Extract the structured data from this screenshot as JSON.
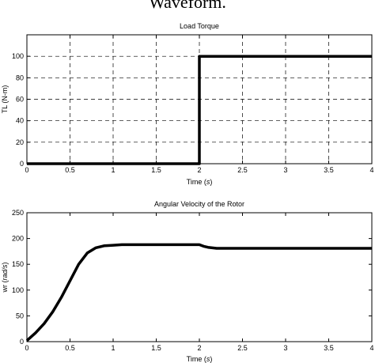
{
  "figure": {
    "partial_title": "Waveform."
  },
  "chart_data": [
    {
      "type": "line",
      "title": "Load Torque",
      "xlabel_main": "Time (",
      "xlabel_unit": "s",
      "xlabel_close": ")",
      "ylabel": "TL (N-m)",
      "xlim": [
        0,
        4
      ],
      "ylim": [
        0,
        120
      ],
      "xticks": [
        0,
        0.5,
        1,
        1.5,
        2,
        2.5,
        3,
        3.5,
        4
      ],
      "xtick_labels": [
        "0",
        "0.5",
        "1",
        "1.5",
        "2",
        "2.5",
        "3",
        "3.5",
        "4"
      ],
      "yticks": [
        0,
        20,
        40,
        60,
        80,
        100
      ],
      "ytick_labels": [
        "0",
        "20",
        "40",
        "60",
        "80",
        "100"
      ],
      "grid": true,
      "series": [
        {
          "x": [
            0,
            2,
            2,
            4
          ],
          "y": [
            0,
            0,
            100,
            100
          ],
          "color": "#000000"
        }
      ]
    },
    {
      "type": "line",
      "title": "Angular Velocity of the Rotor",
      "xlabel_main": "Time (",
      "xlabel_unit": "s",
      "xlabel_close": ")",
      "ylabel_main": "wr (",
      "ylabel_unit": "rad/s",
      "ylabel_close": ")",
      "xlim": [
        0,
        4
      ],
      "ylim": [
        0,
        250
      ],
      "xticks": [
        0,
        0.5,
        1,
        1.5,
        2,
        2.5,
        3,
        3.5,
        4
      ],
      "xtick_labels": [
        "0",
        "0.5",
        "1",
        "1.5",
        "2",
        "2.5",
        "3",
        "3.5",
        "4"
      ],
      "yticks": [
        0,
        50,
        100,
        150,
        200,
        250
      ],
      "ytick_labels": [
        "0",
        "50",
        "100",
        "150",
        "200",
        "250"
      ],
      "grid": false,
      "series": [
        {
          "x": [
            0,
            0.1,
            0.2,
            0.3,
            0.4,
            0.5,
            0.6,
            0.7,
            0.8,
            0.9,
            1.0,
            1.1,
            1.2,
            1.5,
            1.8,
            2.0,
            2.05,
            2.1,
            2.2,
            2.5,
            3.0,
            3.5,
            4.0
          ],
          "y": [
            2,
            17,
            35,
            58,
            86,
            118,
            150,
            172,
            182,
            186,
            187,
            188,
            188,
            188,
            188,
            188,
            185,
            183,
            181,
            181,
            181,
            181,
            181
          ],
          "color": "#000000"
        }
      ]
    }
  ]
}
